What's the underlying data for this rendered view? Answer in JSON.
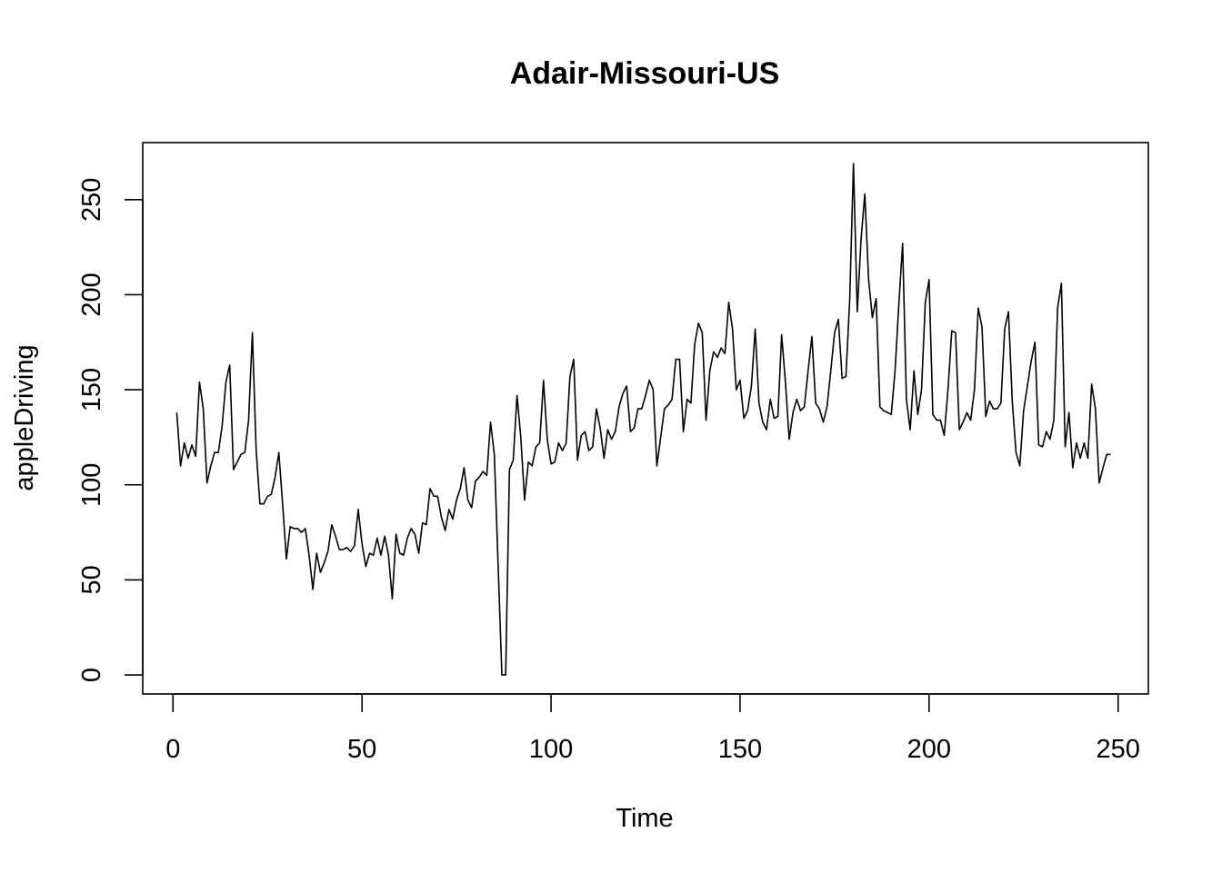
{
  "chart_data": {
    "type": "line",
    "title": "Adair-Missouri-US",
    "xlabel": "Time",
    "ylabel": "appleDriving",
    "xlim": [
      -8,
      258
    ],
    "ylim": [
      -10,
      280
    ],
    "xticks": [
      0,
      50,
      100,
      150,
      200,
      250
    ],
    "yticks": [
      0,
      50,
      100,
      150,
      200,
      250
    ],
    "grid": false,
    "legend": "none",
    "line_color": "#000000",
    "series": [
      {
        "x_start": 1,
        "values": [
          138,
          110,
          122,
          114,
          121,
          115,
          154,
          140,
          101,
          110,
          117,
          117,
          131,
          154,
          163,
          108,
          112,
          116,
          117,
          134,
          180,
          118,
          90,
          90,
          94,
          95,
          104,
          117,
          90,
          61,
          78,
          77,
          77,
          75,
          77,
          63,
          45,
          64,
          54,
          59,
          65,
          79,
          73,
          66,
          66,
          67,
          65,
          68,
          87,
          69,
          57,
          64,
          63,
          72,
          63,
          73,
          63,
          40,
          74,
          64,
          63,
          72,
          77,
          74,
          64,
          80,
          79,
          98,
          94,
          94,
          83,
          76,
          87,
          82,
          92,
          98,
          109,
          92,
          88,
          102,
          104,
          107,
          105,
          133,
          116,
          58,
          0,
          0,
          108,
          113,
          147,
          125,
          92,
          112,
          110,
          120,
          122,
          155,
          124,
          111,
          112,
          122,
          118,
          122,
          157,
          166,
          113,
          126,
          128,
          118,
          120,
          140,
          130,
          114,
          129,
          124,
          128,
          141,
          148,
          152,
          128,
          130,
          140,
          140,
          147,
          155,
          150,
          110,
          125,
          140,
          142,
          145,
          166,
          166,
          128,
          145,
          143,
          174,
          185,
          180,
          134,
          160,
          170,
          167,
          172,
          169,
          196,
          182,
          150,
          155,
          135,
          139,
          152,
          182,
          143,
          133,
          129,
          145,
          135,
          136,
          179,
          154,
          124,
          138,
          145,
          139,
          141,
          160,
          178,
          143,
          140,
          133,
          141,
          160,
          180,
          187,
          156,
          157,
          197,
          269,
          191,
          229,
          253,
          208,
          188,
          198,
          141,
          139,
          138,
          137,
          160,
          195,
          227,
          145,
          129,
          160,
          137,
          150,
          196,
          208,
          137,
          134,
          134,
          126,
          150,
          181,
          180,
          129,
          133,
          138,
          134,
          150,
          193,
          183,
          136,
          144,
          140,
          140,
          143,
          182,
          191,
          144,
          117,
          110,
          139,
          152,
          165,
          175,
          121,
          120,
          128,
          124,
          134,
          193,
          206,
          120,
          138,
          109,
          122,
          114,
          122,
          114,
          153,
          140,
          101,
          109,
          116,
          116
        ]
      }
    ]
  }
}
